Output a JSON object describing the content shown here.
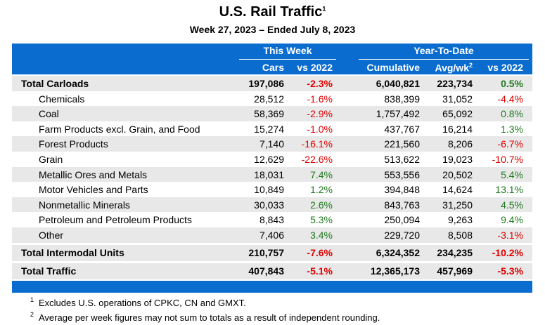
{
  "header": {
    "title": "U.S. Rail Traffic",
    "title_note": "1",
    "subtitle": "Week 27, 2023 – Ended July 8, 2023"
  },
  "table": {
    "groups": [
      "This Week",
      "Year-To-Date"
    ],
    "columns": [
      {
        "text": "Cars"
      },
      {
        "text": "vs 2022"
      },
      {
        "text": "Cumulative"
      },
      {
        "text": "Avg/wk",
        "sup": "2"
      },
      {
        "text": "vs 2022"
      }
    ],
    "rows": [
      {
        "label": "Total Carloads",
        "total": true,
        "cells": [
          "197,086",
          "-2.3%",
          "6,040,821",
          "223,734",
          "0.5%"
        ]
      },
      {
        "label": "Chemicals",
        "cells": [
          "28,512",
          "-1.6%",
          "838,399",
          "31,052",
          "-4.4%"
        ]
      },
      {
        "label": "Coal",
        "cells": [
          "58,369",
          "-2.9%",
          "1,757,492",
          "65,092",
          "0.8%"
        ]
      },
      {
        "label": "Farm Products excl. Grain, and Food",
        "cells": [
          "15,274",
          "-1.0%",
          "437,767",
          "16,214",
          "1.3%"
        ]
      },
      {
        "label": "Forest Products",
        "cells": [
          "7,140",
          "-16.1%",
          "221,560",
          "8,206",
          "-6.7%"
        ]
      },
      {
        "label": "Grain",
        "cells": [
          "12,629",
          "-22.6%",
          "513,622",
          "19,023",
          "-10.7%"
        ]
      },
      {
        "label": "Metallic Ores and Metals",
        "cells": [
          "18,031",
          "7.4%",
          "553,556",
          "20,502",
          "5.4%"
        ]
      },
      {
        "label": "Motor Vehicles and Parts",
        "cells": [
          "10,849",
          "1.2%",
          "394,848",
          "14,624",
          "13.1%"
        ]
      },
      {
        "label": "Nonmetallic Minerals",
        "cells": [
          "30,033",
          "2.6%",
          "843,763",
          "31,250",
          "4.5%"
        ]
      },
      {
        "label": "Petroleum and Petroleum Products",
        "cells": [
          "8,843",
          "5.3%",
          "250,094",
          "9,263",
          "9.4%"
        ]
      },
      {
        "label": "Other",
        "cells": [
          "7,406",
          "3.4%",
          "229,720",
          "8,508",
          "-3.1%"
        ]
      },
      {
        "label": "Total Intermodal Units",
        "total": true,
        "cells": [
          "210,757",
          "-7.6%",
          "6,324,352",
          "234,235",
          "-10.2%"
        ]
      },
      {
        "label": "Total Traffic",
        "total": true,
        "cells": [
          "407,843",
          "-5.1%",
          "12,365,173",
          "457,969",
          "-5.3%"
        ]
      }
    ]
  },
  "footnotes": [
    {
      "mark": "1",
      "text": "Excludes U.S. operations of CPKC, CN and GMXT."
    },
    {
      "mark": "2",
      "text": "Average per week figures may not sum to totals as a result of independent rounding."
    }
  ]
}
